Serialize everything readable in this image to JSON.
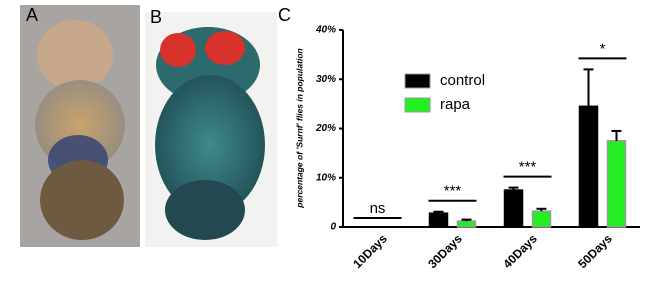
{
  "panels": [
    "A",
    "B",
    "C"
  ],
  "chart_data": {
    "type": "bar",
    "y_label": "percentage of 'Surnf' flies in population",
    "categories": [
      "10Days",
      "30Days",
      "40Days",
      "50Days"
    ],
    "series": [
      {
        "name": "control",
        "color": "#000000",
        "values": [
          0,
          2.8,
          7.5,
          24.5
        ],
        "errors": [
          0,
          0.3,
          0.5,
          7.5
        ]
      },
      {
        "name": "rapa",
        "color": "#22ee22",
        "values": [
          0,
          1.2,
          3.2,
          17.5
        ],
        "errors": [
          0,
          0.3,
          0.5,
          2
        ]
      }
    ],
    "annotations": [
      "ns",
      "***",
      "***",
      "*"
    ],
    "ylim": [
      0,
      40
    ],
    "yticks": [
      0,
      {
        "value": 10,
        "label": "10%"
      },
      {
        "value": 20,
        "label": "20%"
      },
      {
        "value": 30,
        "label": "30%"
      },
      {
        "value": 40,
        "label": "40%"
      }
    ],
    "grid": false
  }
}
